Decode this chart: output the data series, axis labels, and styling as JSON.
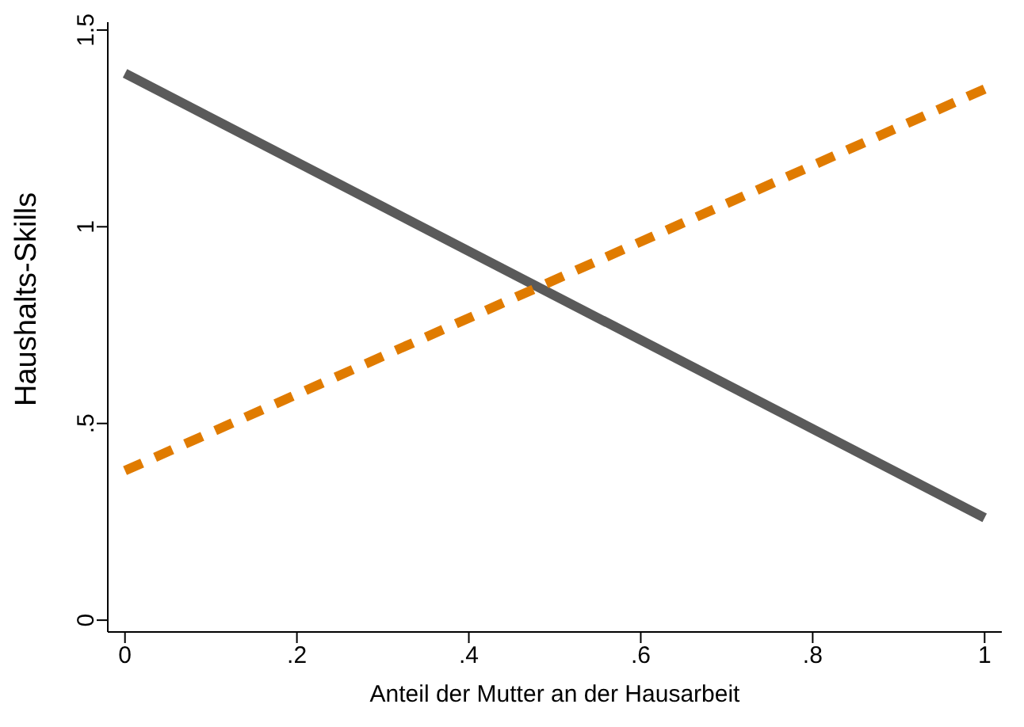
{
  "chart_data": {
    "type": "line",
    "xlabel": "Anteil der Mutter an der Hausarbeit",
    "ylabel": "Haushalts-Skills",
    "x": [
      0,
      1
    ],
    "series": [
      {
        "color": "#5a5a5a",
        "values": [
          1.39,
          0.26
        ],
        "line_style": "solid"
      },
      {
        "color": "#e07b00",
        "values": [
          0.38,
          1.35
        ],
        "line_style": "dashed"
      }
    ],
    "xlim": [
      -0.02,
      1.02
    ],
    "xticks": [
      0,
      {
        "value": 0.2,
        "label": ".2"
      },
      {
        "value": 0.4,
        "label": ".4"
      },
      {
        "value": 0.6,
        "label": ".6"
      },
      {
        "value": 0.8,
        "label": ".8"
      },
      1
    ],
    "ylim": [
      -0.03,
      1.52
    ],
    "yticks": [
      0,
      {
        "value": 0.5,
        "label": ".5"
      },
      1,
      1.5
    ],
    "grid": false,
    "marker": "none"
  }
}
